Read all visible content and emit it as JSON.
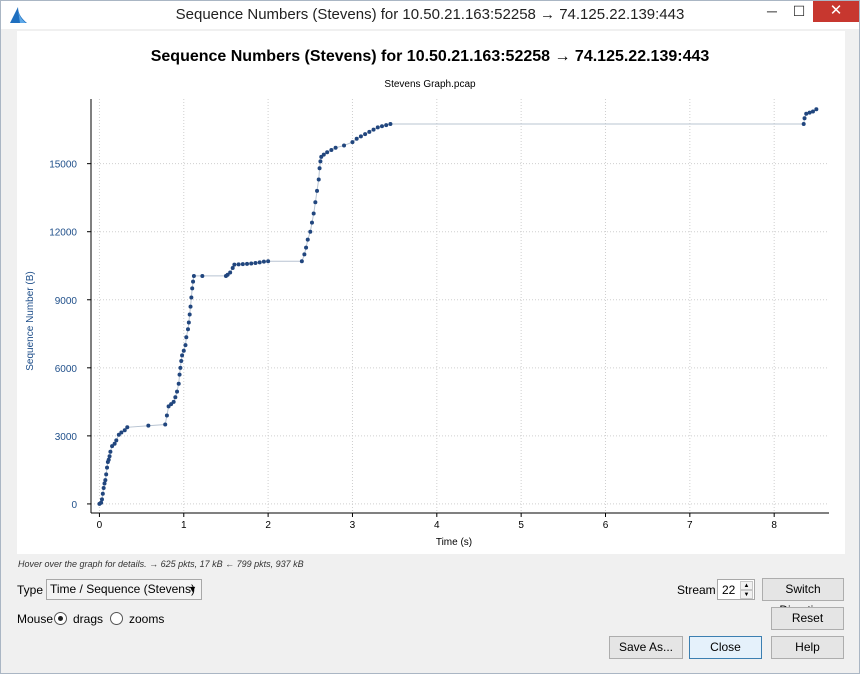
{
  "window": {
    "title": "Sequence Numbers (Stevens) for 10.50.21.163:52258 → 74.125.22.139:443",
    "controls": {
      "minimize": "─",
      "maximize": "☐",
      "close": "✕"
    }
  },
  "chart_data": {
    "type": "scatter",
    "title": "Sequence Numbers (Stevens) for 10.50.21.163:52258 → 74.125.22.139:443",
    "subtitle": "Stevens Graph.pcap",
    "xlabel": "Time (s)",
    "ylabel": "Sequence Number (B)",
    "xlim": [
      -0.1,
      8.65
    ],
    "ylim": [
      -400,
      17850
    ],
    "xticks": [
      0,
      1,
      2,
      3,
      4,
      5,
      6,
      7,
      8
    ],
    "yticks": [
      0,
      3000,
      6000,
      9000,
      12000,
      15000
    ],
    "grid": true,
    "color": "#21467e",
    "line_color": "#b8c4d2",
    "points": [
      [
        0.0,
        0
      ],
      [
        0.02,
        50
      ],
      [
        0.03,
        200
      ],
      [
        0.04,
        450
      ],
      [
        0.05,
        700
      ],
      [
        0.06,
        900
      ],
      [
        0.07,
        1050
      ],
      [
        0.08,
        1300
      ],
      [
        0.09,
        1600
      ],
      [
        0.1,
        1850
      ],
      [
        0.11,
        1950
      ],
      [
        0.12,
        2100
      ],
      [
        0.13,
        2300
      ],
      [
        0.15,
        2550
      ],
      [
        0.18,
        2650
      ],
      [
        0.2,
        2800
      ],
      [
        0.23,
        3050
      ],
      [
        0.26,
        3150
      ],
      [
        0.3,
        3250
      ],
      [
        0.33,
        3380
      ],
      [
        0.58,
        3450
      ],
      [
        0.78,
        3500
      ],
      [
        0.8,
        3900
      ],
      [
        0.82,
        4300
      ],
      [
        0.85,
        4400
      ],
      [
        0.88,
        4500
      ],
      [
        0.9,
        4700
      ],
      [
        0.92,
        4950
      ],
      [
        0.94,
        5300
      ],
      [
        0.95,
        5700
      ],
      [
        0.96,
        6000
      ],
      [
        0.97,
        6300
      ],
      [
        0.98,
        6550
      ],
      [
        1.0,
        6750
      ],
      [
        1.02,
        7000
      ],
      [
        1.03,
        7350
      ],
      [
        1.05,
        7700
      ],
      [
        1.06,
        8000
      ],
      [
        1.07,
        8350
      ],
      [
        1.08,
        8700
      ],
      [
        1.09,
        9100
      ],
      [
        1.1,
        9500
      ],
      [
        1.11,
        9800
      ],
      [
        1.12,
        10050
      ],
      [
        1.22,
        10050
      ],
      [
        1.5,
        10050
      ],
      [
        1.52,
        10100
      ],
      [
        1.55,
        10200
      ],
      [
        1.58,
        10400
      ],
      [
        1.6,
        10550
      ],
      [
        1.65,
        10560
      ],
      [
        1.7,
        10570
      ],
      [
        1.75,
        10580
      ],
      [
        1.8,
        10600
      ],
      [
        1.85,
        10620
      ],
      [
        1.9,
        10650
      ],
      [
        1.95,
        10680
      ],
      [
        2.0,
        10700
      ],
      [
        2.4,
        10700
      ],
      [
        2.43,
        11000
      ],
      [
        2.45,
        11300
      ],
      [
        2.47,
        11650
      ],
      [
        2.5,
        12000
      ],
      [
        2.52,
        12400
      ],
      [
        2.54,
        12800
      ],
      [
        2.56,
        13300
      ],
      [
        2.58,
        13800
      ],
      [
        2.6,
        14300
      ],
      [
        2.61,
        14800
      ],
      [
        2.62,
        15100
      ],
      [
        2.63,
        15300
      ],
      [
        2.66,
        15400
      ],
      [
        2.7,
        15500
      ],
      [
        2.75,
        15600
      ],
      [
        2.8,
        15700
      ],
      [
        2.9,
        15800
      ],
      [
        3.0,
        15950
      ],
      [
        3.05,
        16100
      ],
      [
        3.1,
        16200
      ],
      [
        3.15,
        16300
      ],
      [
        3.2,
        16400
      ],
      [
        3.25,
        16500
      ],
      [
        3.3,
        16600
      ],
      [
        3.35,
        16650
      ],
      [
        3.4,
        16700
      ],
      [
        3.45,
        16750
      ],
      [
        8.35,
        16750
      ],
      [
        8.36,
        17000
      ],
      [
        8.38,
        17200
      ],
      [
        8.42,
        17250
      ],
      [
        8.46,
        17300
      ],
      [
        8.5,
        17400
      ]
    ]
  },
  "hint_text": "Hover over the graph for details. → 625 pkts, 17 kB ← 799 pkts, 937 kB",
  "controls": {
    "type_label": "Type",
    "type_value": "Time / Sequence (Stevens)",
    "mouse_label": "Mouse",
    "mouse_drags": "drags",
    "mouse_zooms": "zooms",
    "stream_label": "Stream",
    "stream_value": "22",
    "switch_direction": "Switch Direction",
    "reset": "Reset",
    "save_as": "Save As...",
    "close": "Close",
    "help": "Help"
  }
}
